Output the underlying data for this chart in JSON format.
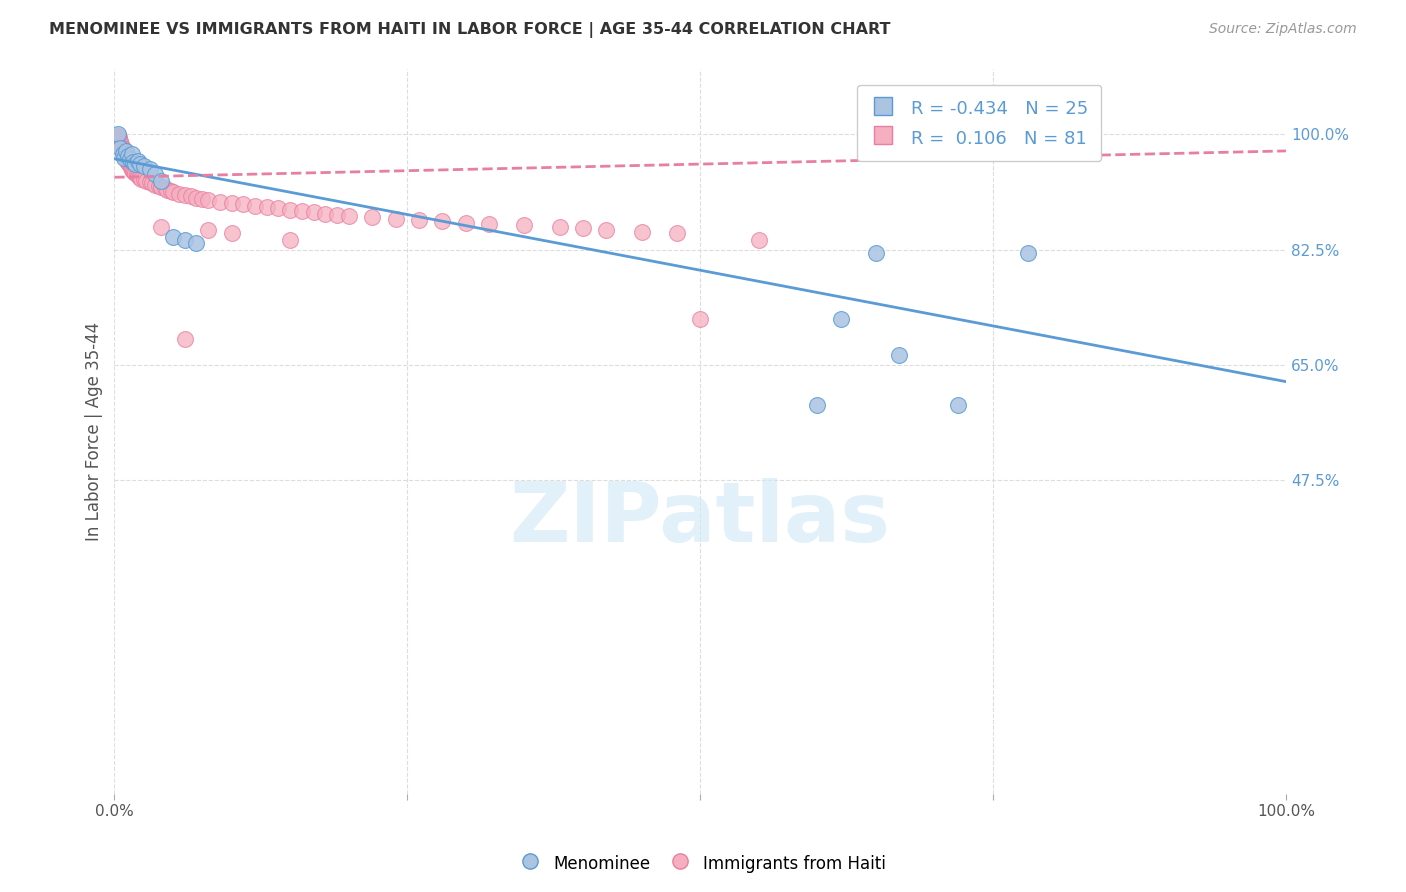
{
  "title": "MENOMINEE VS IMMIGRANTS FROM HAITI IN LABOR FORCE | AGE 35-44 CORRELATION CHART",
  "source": "Source: ZipAtlas.com",
  "ylabel": "In Labor Force | Age 35-44",
  "xlim": [
    0.0,
    1.0
  ],
  "ylim": [
    0.0,
    1.1
  ],
  "ytick_values": [
    1.0,
    0.825,
    0.65,
    0.475
  ],
  "ytick_labels": [
    "100.0%",
    "82.5%",
    "65.0%",
    "47.5%"
  ],
  "legend_r_menominee": "-0.434",
  "legend_n_menominee": "25",
  "legend_r_haiti": " 0.106",
  "legend_n_haiti": "81",
  "menominee_color": "#aac4e2",
  "haiti_color": "#f5afc0",
  "menominee_edge_color": "#5b9bd5",
  "haiti_edge_color": "#e87fa0",
  "menominee_line_color": "#5b9bd5",
  "haiti_line_color": "#e87fa0",
  "watermark_color": "#d0e8f5",
  "background_color": "#ffffff",
  "grid_color": "#dddddd",
  "menominee_points": [
    [
      0.003,
      1.0
    ],
    [
      0.005,
      0.98
    ],
    [
      0.007,
      0.97
    ],
    [
      0.008,
      0.965
    ],
    [
      0.01,
      0.975
    ],
    [
      0.012,
      0.968
    ],
    [
      0.013,
      0.963
    ],
    [
      0.015,
      0.97
    ],
    [
      0.016,
      0.958
    ],
    [
      0.018,
      0.955
    ],
    [
      0.02,
      0.96
    ],
    [
      0.022,
      0.955
    ],
    [
      0.025,
      0.952
    ],
    [
      0.03,
      0.948
    ],
    [
      0.035,
      0.94
    ],
    [
      0.04,
      0.93
    ],
    [
      0.05,
      0.845
    ],
    [
      0.06,
      0.84
    ],
    [
      0.07,
      0.835
    ],
    [
      0.62,
      0.72
    ],
    [
      0.65,
      0.82
    ],
    [
      0.67,
      0.665
    ],
    [
      0.72,
      0.59
    ],
    [
      0.78,
      0.82
    ],
    [
      0.6,
      0.59
    ]
  ],
  "haiti_points": [
    [
      0.003,
      0.998
    ],
    [
      0.004,
      0.996
    ],
    [
      0.004,
      0.993
    ],
    [
      0.005,
      0.99
    ],
    [
      0.005,
      0.988
    ],
    [
      0.006,
      0.985
    ],
    [
      0.006,
      0.983
    ],
    [
      0.007,
      0.98
    ],
    [
      0.007,
      0.978
    ],
    [
      0.008,
      0.975
    ],
    [
      0.008,
      0.972
    ],
    [
      0.009,
      0.97
    ],
    [
      0.009,
      0.968
    ],
    [
      0.01,
      0.967
    ],
    [
      0.01,
      0.965
    ],
    [
      0.011,
      0.963
    ],
    [
      0.011,
      0.96
    ],
    [
      0.012,
      0.958
    ],
    [
      0.012,
      0.956
    ],
    [
      0.013,
      0.955
    ],
    [
      0.013,
      0.953
    ],
    [
      0.014,
      0.952
    ],
    [
      0.014,
      0.95
    ],
    [
      0.015,
      0.948
    ],
    [
      0.015,
      0.946
    ],
    [
      0.016,
      0.945
    ],
    [
      0.017,
      0.943
    ],
    [
      0.018,
      0.941
    ],
    [
      0.019,
      0.94
    ],
    [
      0.02,
      0.938
    ],
    [
      0.021,
      0.936
    ],
    [
      0.022,
      0.935
    ],
    [
      0.023,
      0.933
    ],
    [
      0.025,
      0.932
    ],
    [
      0.027,
      0.93
    ],
    [
      0.03,
      0.928
    ],
    [
      0.032,
      0.926
    ],
    [
      0.035,
      0.924
    ],
    [
      0.038,
      0.922
    ],
    [
      0.04,
      0.92
    ],
    [
      0.043,
      0.918
    ],
    [
      0.045,
      0.916
    ],
    [
      0.048,
      0.914
    ],
    [
      0.05,
      0.912
    ],
    [
      0.055,
      0.91
    ],
    [
      0.06,
      0.908
    ],
    [
      0.065,
      0.906
    ],
    [
      0.07,
      0.904
    ],
    [
      0.075,
      0.902
    ],
    [
      0.08,
      0.9
    ],
    [
      0.09,
      0.898
    ],
    [
      0.1,
      0.896
    ],
    [
      0.11,
      0.894
    ],
    [
      0.12,
      0.892
    ],
    [
      0.13,
      0.89
    ],
    [
      0.14,
      0.888
    ],
    [
      0.15,
      0.886
    ],
    [
      0.16,
      0.884
    ],
    [
      0.17,
      0.882
    ],
    [
      0.18,
      0.88
    ],
    [
      0.19,
      0.878
    ],
    [
      0.2,
      0.876
    ],
    [
      0.22,
      0.874
    ],
    [
      0.24,
      0.872
    ],
    [
      0.26,
      0.87
    ],
    [
      0.28,
      0.868
    ],
    [
      0.3,
      0.866
    ],
    [
      0.32,
      0.864
    ],
    [
      0.35,
      0.862
    ],
    [
      0.38,
      0.86
    ],
    [
      0.4,
      0.858
    ],
    [
      0.42,
      0.855
    ],
    [
      0.45,
      0.852
    ],
    [
      0.48,
      0.85
    ],
    [
      0.5,
      0.72
    ],
    [
      0.55,
      0.84
    ],
    [
      0.15,
      0.84
    ],
    [
      0.08,
      0.855
    ],
    [
      0.1,
      0.85
    ],
    [
      0.04,
      0.86
    ],
    [
      0.06,
      0.69
    ]
  ]
}
